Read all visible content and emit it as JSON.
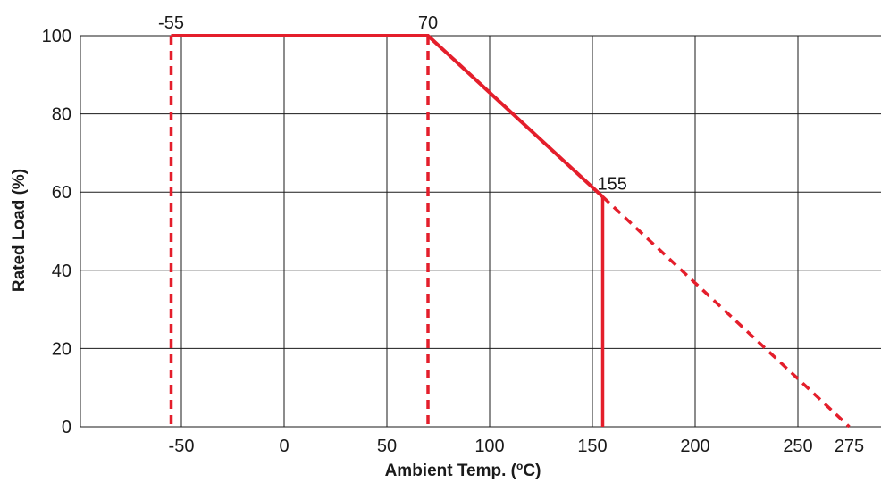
{
  "chart_data": {
    "type": "line",
    "xlabel_main": "Ambient Temp. (",
    "xlabel_sup": "o",
    "xlabel_end": "C)",
    "ylabel": "Rated Load (%)",
    "xlim": [
      -105,
      285
    ],
    "ylim": [
      0,
      100
    ],
    "x_ticks": [
      -50,
      0,
      50,
      100,
      150,
      200,
      250,
      275
    ],
    "x_tick_labels": [
      "-50",
      "0",
      "50",
      "100",
      "150",
      "200",
      "250",
      "275"
    ],
    "x_grid": [
      -50,
      0,
      50,
      100,
      150,
      200,
      250
    ],
    "y_ticks": [
      0,
      20,
      40,
      60,
      80,
      100
    ],
    "y_tick_labels": [
      "0",
      "20",
      "40",
      "60",
      "80",
      "100"
    ],
    "grid": true,
    "accent_color": "#e41e2b",
    "derating_curve": {
      "x": [
        -55,
        70,
        155
      ],
      "y": [
        100,
        100,
        58.8
      ],
      "style": "solid"
    },
    "extrapolation": {
      "x": [
        155,
        275
      ],
      "y": [
        58.8,
        0
      ],
      "style": "dashed"
    },
    "limit_lines": [
      {
        "x": -55,
        "style": "dashed"
      },
      {
        "x": 70,
        "style": "dashed"
      },
      {
        "x": 155,
        "style": "solid"
      }
    ],
    "annotations": [
      {
        "text": "-55",
        "x": -55,
        "y": 100
      },
      {
        "text": "70",
        "x": 70,
        "y": 100
      },
      {
        "text": "155",
        "x": 155,
        "y": 58.8
      }
    ]
  }
}
